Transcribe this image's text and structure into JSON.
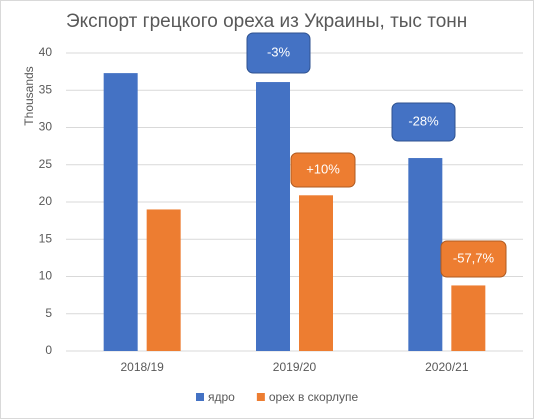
{
  "chart_data": {
    "type": "bar",
    "title": "Экспорт грецкого ореха из Украины, тыс тонн",
    "y_label": "Thousands",
    "categories": [
      "2018/19",
      "2019/20",
      "2020/21"
    ],
    "series": [
      {
        "name": "ядро",
        "color": "#4472c4",
        "values": [
          37.3,
          36.1,
          25.9
        ]
      },
      {
        "name": "орех в скорлупе",
        "color": "#ed7d31",
        "values": [
          19.0,
          20.9,
          8.8
        ]
      }
    ],
    "ylim": [
      0,
      40
    ],
    "yticks": [
      0,
      5,
      10,
      15,
      20,
      25,
      30,
      35,
      40
    ],
    "grid": true,
    "legend": "bottom",
    "annotations": [
      "-3%",
      "+10%",
      "-28%",
      "-57,7%"
    ]
  }
}
